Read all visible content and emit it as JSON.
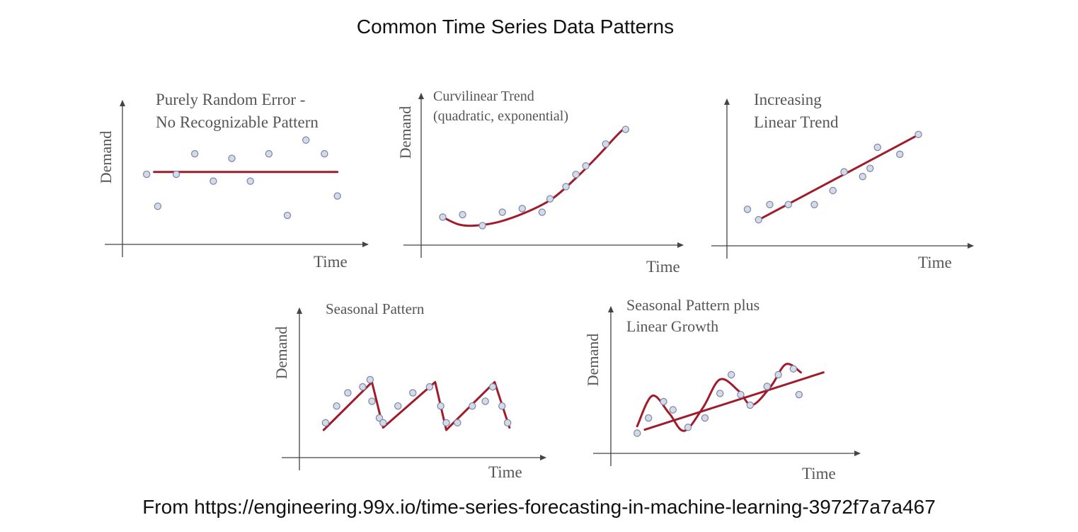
{
  "page": {
    "title": "Common Time Series Data Patterns",
    "source": "From https://engineering.99x.io/time-series-forecasting-in-machine-learning-3972f7a7a467"
  },
  "colors": {
    "line": "#a01c2c",
    "point_fill": "#d4dae8",
    "point_stroke": "#7c86a2",
    "axis": "#444444",
    "text": "#555555"
  },
  "chart_data": [
    {
      "type": "scatter",
      "title": [
        "Purely Random Error -",
        "No Recognizable Pattern"
      ],
      "xlabel": "Time",
      "ylabel": "Demand",
      "xlim": [
        0,
        12
      ],
      "ylim": [
        0,
        10
      ],
      "points": [
        [
          1,
          5.4
        ],
        [
          1.6,
          2.6
        ],
        [
          2.6,
          5.4
        ],
        [
          3.6,
          7.2
        ],
        [
          4.6,
          4.8
        ],
        [
          5.6,
          6.8
        ],
        [
          6.6,
          4.8
        ],
        [
          7.6,
          7.2
        ],
        [
          8.6,
          1.8
        ],
        [
          9.6,
          8.4
        ],
        [
          10.6,
          7.2
        ],
        [
          11.3,
          3.5
        ]
      ],
      "lines": [
        {
          "kind": "straight",
          "points": [
            [
              1.4,
              5.6
            ],
            [
              11.3,
              5.6
            ]
          ]
        }
      ]
    },
    {
      "type": "scatter",
      "title": [
        "Curvilinear Trend",
        "(quadratic, exponential)"
      ],
      "xlabel": "Time",
      "ylabel": "Demand",
      "xlim": [
        0,
        12
      ],
      "ylim": [
        0,
        10
      ],
      "points": [
        [
          0.8,
          1.6
        ],
        [
          1.8,
          1.8
        ],
        [
          2.8,
          0.9
        ],
        [
          3.8,
          2.0
        ],
        [
          4.8,
          2.3
        ],
        [
          5.8,
          2.0
        ],
        [
          6.2,
          3.1
        ],
        [
          7.0,
          4.1
        ],
        [
          7.5,
          5.1
        ],
        [
          8.0,
          5.8
        ],
        [
          9.0,
          7.6
        ],
        [
          10.0,
          8.8
        ]
      ],
      "lines": [
        {
          "kind": "smooth",
          "points": [
            [
              0.8,
              1.6
            ],
            [
              1.6,
              1.0
            ],
            [
              2.4,
              0.9
            ],
            [
              3.6,
              1.2
            ],
            [
              5.0,
              2.0
            ],
            [
              6.3,
              3.1
            ],
            [
              7.5,
              4.8
            ],
            [
              8.6,
              6.6
            ],
            [
              9.5,
              8.2
            ],
            [
              10.0,
              9.0
            ]
          ]
        }
      ]
    },
    {
      "type": "scatter",
      "title": [
        "Increasing",
        "Linear Trend"
      ],
      "xlabel": "Time",
      "ylabel": "Demand",
      "xlim": [
        0,
        12
      ],
      "ylim": [
        0,
        10
      ],
      "points": [
        [
          0.8,
          2.4
        ],
        [
          1.4,
          1.5
        ],
        [
          2.0,
          2.8
        ],
        [
          3.0,
          2.8
        ],
        [
          4.4,
          2.8
        ],
        [
          5.4,
          4.0
        ],
        [
          6.0,
          5.6
        ],
        [
          7.0,
          5.2
        ],
        [
          7.4,
          5.9
        ],
        [
          7.8,
          7.7
        ],
        [
          9.0,
          7.1
        ],
        [
          10.0,
          8.8
        ]
      ],
      "lines": [
        {
          "kind": "straight",
          "points": [
            [
              1.4,
              1.5
            ],
            [
              9.8,
              8.6
            ]
          ]
        }
      ]
    },
    {
      "type": "scatter",
      "title": [
        "Seasonal Pattern"
      ],
      "xlabel": "Time",
      "ylabel": "Demand",
      "xlim": [
        0,
        12
      ],
      "ylim": [
        0,
        10
      ],
      "points": [
        [
          1.1,
          2.2
        ],
        [
          1.7,
          3.6
        ],
        [
          2.3,
          4.7
        ],
        [
          3.1,
          5.2
        ],
        [
          3.5,
          5.8
        ],
        [
          3.6,
          4.0
        ],
        [
          4.0,
          2.6
        ],
        [
          4.2,
          2.2
        ],
        [
          5.0,
          3.6
        ],
        [
          5.8,
          4.7
        ],
        [
          6.7,
          5.2
        ],
        [
          7.3,
          3.6
        ],
        [
          7.6,
          2.2
        ],
        [
          8.2,
          2.2
        ],
        [
          9.0,
          3.6
        ],
        [
          9.7,
          4.0
        ],
        [
          10.1,
          5.2
        ],
        [
          10.6,
          3.6
        ],
        [
          10.9,
          2.2
        ]
      ],
      "lines": [
        {
          "kind": "straight",
          "points": [
            [
              1.0,
              1.6
            ],
            [
              3.6,
              5.6
            ],
            [
              4.2,
              1.8
            ],
            [
              7.0,
              5.6
            ],
            [
              7.6,
              1.6
            ],
            [
              10.2,
              5.6
            ],
            [
              11.0,
              1.8
            ]
          ]
        }
      ]
    },
    {
      "type": "scatter",
      "title": [
        "Seasonal Pattern plus",
        "Linear Growth"
      ],
      "xlabel": "Time",
      "ylabel": "Demand",
      "xlim": [
        0,
        12
      ],
      "ylim": [
        0,
        10
      ],
      "points": [
        [
          1.1,
          1.0
        ],
        [
          1.7,
          2.3
        ],
        [
          2.5,
          3.7
        ],
        [
          3.0,
          3.0
        ],
        [
          3.8,
          1.5
        ],
        [
          4.7,
          2.3
        ],
        [
          5.5,
          4.4
        ],
        [
          6.1,
          6.0
        ],
        [
          6.6,
          4.3
        ],
        [
          7.1,
          3.4
        ],
        [
          8.0,
          5.0
        ],
        [
          8.6,
          6.0
        ],
        [
          9.4,
          6.5
        ],
        [
          9.7,
          4.3
        ]
      ],
      "lines": [
        {
          "kind": "smooth",
          "points": [
            [
              1.1,
              1.6
            ],
            [
              1.9,
              4.2
            ],
            [
              2.8,
              2.7
            ],
            [
              3.6,
              1.2
            ],
            [
              4.6,
              3.2
            ],
            [
              5.5,
              5.6
            ],
            [
              6.5,
              4.6
            ],
            [
              7.2,
              3.4
            ],
            [
              8.2,
              5.0
            ],
            [
              9.0,
              6.9
            ],
            [
              9.8,
              6.2
            ]
          ]
        },
        {
          "kind": "straight",
          "points": [
            [
              1.5,
              1.3
            ],
            [
              11.0,
              6.2
            ]
          ]
        }
      ]
    }
  ]
}
